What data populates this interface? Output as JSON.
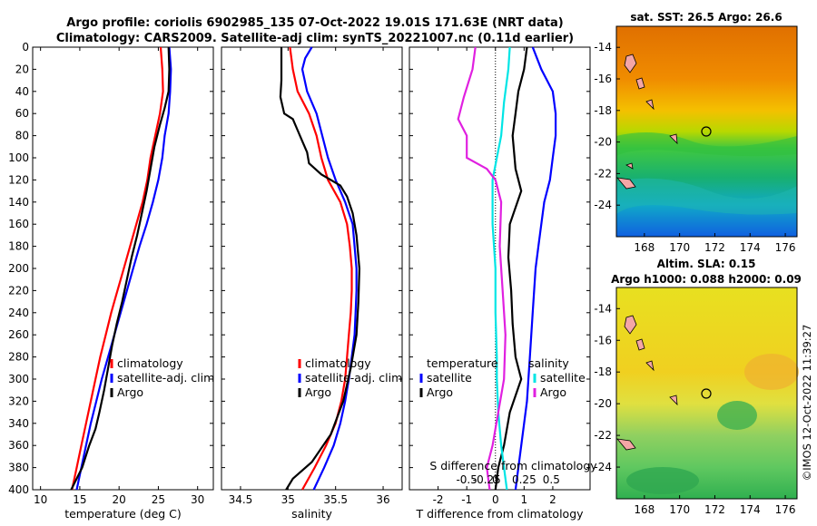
{
  "titles": {
    "line1": "Argo profile: coriolis 6902985_135 07-Oct-2022 19.01S 171.63E (NRT data)",
    "line2": "Climatology: CARS2009. Satellite-adj clim: synTS_20221007.nc (0.11d earlier)"
  },
  "colors": {
    "clim": "#ff0000",
    "sat": "#0000ff",
    "argo": "#000000",
    "sal_sat": "#00e5e5",
    "sal_argo": "#e020e0"
  },
  "chart_data": [
    {
      "type": "line",
      "id": "temperature",
      "xlabel": "temperature (deg C)",
      "xlim": [
        9,
        32
      ],
      "ylim": [
        400,
        0
      ],
      "xticks": [
        10,
        15,
        20,
        25,
        30
      ],
      "yticks": [
        0,
        20,
        40,
        60,
        80,
        100,
        120,
        140,
        160,
        180,
        200,
        220,
        240,
        260,
        280,
        300,
        320,
        340,
        360,
        380,
        400
      ],
      "legend": [
        "climatology",
        "satellite-adj. clim",
        "Argo"
      ],
      "series": [
        {
          "name": "climatology",
          "color": "#ff0000",
          "points": [
            [
              25.3,
              0
            ],
            [
              25.5,
              20
            ],
            [
              25.6,
              40
            ],
            [
              25.2,
              60
            ],
            [
              24.6,
              80
            ],
            [
              24,
              100
            ],
            [
              23.6,
              120
            ],
            [
              23,
              140
            ],
            [
              22.2,
              160
            ],
            [
              21.4,
              180
            ],
            [
              20.6,
              200
            ],
            [
              19.8,
              220
            ],
            [
              19,
              240
            ],
            [
              18.3,
              260
            ],
            [
              17.6,
              280
            ],
            [
              17,
              300
            ],
            [
              16.4,
              320
            ],
            [
              15.8,
              340
            ],
            [
              15.2,
              360
            ],
            [
              14.6,
              380
            ],
            [
              14,
              400
            ]
          ]
        },
        {
          "name": "satellite-adj. clim",
          "color": "#0000ff",
          "points": [
            [
              26.4,
              0
            ],
            [
              26.6,
              20
            ],
            [
              26.5,
              40
            ],
            [
              26.3,
              60
            ],
            [
              25.8,
              80
            ],
            [
              25.5,
              100
            ],
            [
              25,
              120
            ],
            [
              24.3,
              140
            ],
            [
              23.5,
              160
            ],
            [
              22.6,
              180
            ],
            [
              21.8,
              200
            ],
            [
              21,
              220
            ],
            [
              20.2,
              240
            ],
            [
              19.4,
              260
            ],
            [
              18.6,
              280
            ],
            [
              17.8,
              300
            ],
            [
              17.1,
              320
            ],
            [
              16.4,
              340
            ],
            [
              15.8,
              360
            ],
            [
              15.2,
              380
            ],
            [
              14.6,
              400
            ]
          ]
        },
        {
          "name": "Argo",
          "color": "#000000",
          "points": [
            [
              26.3,
              0
            ],
            [
              26.4,
              20
            ],
            [
              26.3,
              40
            ],
            [
              25.8,
              55
            ],
            [
              25.2,
              70
            ],
            [
              24.5,
              90
            ],
            [
              24,
              110
            ],
            [
              23.5,
              130
            ],
            [
              22.9,
              150
            ],
            [
              22.3,
              170
            ],
            [
              21.6,
              190
            ],
            [
              21,
              210
            ],
            [
              20.4,
              230
            ],
            [
              19.7,
              250
            ],
            [
              19.1,
              270
            ],
            [
              18.6,
              290
            ],
            [
              18.1,
              310
            ],
            [
              17.5,
              330
            ],
            [
              17,
              345
            ],
            [
              16.2,
              360
            ],
            [
              15.3,
              380
            ],
            [
              13.9,
              400
            ]
          ]
        }
      ]
    },
    {
      "type": "line",
      "id": "salinity",
      "xlabel": "salinity",
      "xlim": [
        34.3,
        36.2
      ],
      "ylim": [
        400,
        0
      ],
      "xticks": [
        34.5,
        35,
        35.5,
        36
      ],
      "legend": [
        "climatology",
        "satellite-adj. clim",
        "Argo"
      ],
      "series": [
        {
          "name": "climatology",
          "color": "#ff0000",
          "points": [
            [
              35.02,
              0
            ],
            [
              35.05,
              20
            ],
            [
              35.1,
              40
            ],
            [
              35.22,
              60
            ],
            [
              35.3,
              80
            ],
            [
              35.35,
              100
            ],
            [
              35.42,
              120
            ],
            [
              35.55,
              140
            ],
            [
              35.62,
              160
            ],
            [
              35.65,
              180
            ],
            [
              35.67,
              200
            ],
            [
              35.67,
              220
            ],
            [
              35.66,
              240
            ],
            [
              35.64,
              260
            ],
            [
              35.62,
              280
            ],
            [
              35.6,
              300
            ],
            [
              35.56,
              320
            ],
            [
              35.5,
              340
            ],
            [
              35.4,
              360
            ],
            [
              35.28,
              380
            ],
            [
              35.15,
              400
            ]
          ]
        },
        {
          "name": "satellite-adj. clim",
          "color": "#0000ff",
          "points": [
            [
              35.25,
              0
            ],
            [
              35.18,
              10
            ],
            [
              35.15,
              20
            ],
            [
              35.2,
              40
            ],
            [
              35.3,
              60
            ],
            [
              35.36,
              80
            ],
            [
              35.42,
              100
            ],
            [
              35.5,
              120
            ],
            [
              35.6,
              140
            ],
            [
              35.68,
              160
            ],
            [
              35.7,
              180
            ],
            [
              35.72,
              200
            ],
            [
              35.72,
              220
            ],
            [
              35.71,
              240
            ],
            [
              35.7,
              260
            ],
            [
              35.67,
              280
            ],
            [
              35.64,
              300
            ],
            [
              35.6,
              320
            ],
            [
              35.55,
              340
            ],
            [
              35.48,
              360
            ],
            [
              35.38,
              380
            ],
            [
              35.27,
              400
            ]
          ]
        },
        {
          "name": "Argo",
          "color": "#000000",
          "points": [
            [
              34.93,
              0
            ],
            [
              34.93,
              30
            ],
            [
              34.92,
              45
            ],
            [
              34.96,
              60
            ],
            [
              35.05,
              65
            ],
            [
              35.1,
              75
            ],
            [
              35.15,
              85
            ],
            [
              35.2,
              95
            ],
            [
              35.22,
              105
            ],
            [
              35.35,
              115
            ],
            [
              35.55,
              125
            ],
            [
              35.62,
              135
            ],
            [
              35.68,
              150
            ],
            [
              35.72,
              170
            ],
            [
              35.75,
              200
            ],
            [
              35.74,
              230
            ],
            [
              35.72,
              260
            ],
            [
              35.66,
              290
            ],
            [
              35.58,
              320
            ],
            [
              35.45,
              350
            ],
            [
              35.25,
              375
            ],
            [
              35.05,
              390
            ],
            [
              34.98,
              400
            ]
          ]
        }
      ]
    },
    {
      "type": "line",
      "id": "difference",
      "xlabel": "T difference from climatology",
      "xlabel2": "S difference from climatology",
      "xlim": [
        -3,
        3.3
      ],
      "ylim": [
        400,
        0
      ],
      "xticks": [
        -2,
        -1,
        0,
        1,
        2
      ],
      "xticks2_labels": [
        "-0.5",
        "-0.25",
        "0",
        "0.25",
        "0.5"
      ],
      "legend_t_title": "temperature",
      "legend_s_title": "salinity",
      "legend_t": [
        "satellite",
        "Argo"
      ],
      "legend_s": [
        "satellite",
        "Argo"
      ],
      "series": [
        {
          "name": "T satellite",
          "color": "#0000ff",
          "points": [
            [
              1.3,
              0
            ],
            [
              1.6,
              20
            ],
            [
              2,
              40
            ],
            [
              2.1,
              60
            ],
            [
              2.1,
              80
            ],
            [
              2,
              100
            ],
            [
              1.9,
              120
            ],
            [
              1.7,
              140
            ],
            [
              1.6,
              160
            ],
            [
              1.5,
              180
            ],
            [
              1.4,
              200
            ],
            [
              1.3,
              240
            ],
            [
              1.2,
              280
            ],
            [
              1.1,
              320
            ],
            [
              0.9,
              360
            ],
            [
              0.7,
              400
            ]
          ]
        },
        {
          "name": "T Argo",
          "color": "#000000",
          "points": [
            [
              1.1,
              0
            ],
            [
              1.0,
              20
            ],
            [
              0.8,
              40
            ],
            [
              0.7,
              60
            ],
            [
              0.6,
              80
            ],
            [
              0.7,
              110
            ],
            [
              0.9,
              130
            ],
            [
              0.5,
              160
            ],
            [
              0.45,
              190
            ],
            [
              0.55,
              220
            ],
            [
              0.6,
              250
            ],
            [
              0.7,
              280
            ],
            [
              0.9,
              300
            ],
            [
              0.5,
              330
            ],
            [
              0.3,
              360
            ],
            [
              0.1,
              380
            ],
            [
              0,
              400
            ]
          ]
        },
        {
          "name": "S satellite",
          "color": "#00e5e5",
          "points": [
            [
              0.5,
              0
            ],
            [
              0.45,
              20
            ],
            [
              0.3,
              50
            ],
            [
              0.2,
              80
            ],
            [
              0.05,
              100
            ],
            [
              -0.1,
              120
            ],
            [
              -0.1,
              160
            ],
            [
              0,
              200
            ],
            [
              0,
              240
            ],
            [
              0.05,
              280
            ],
            [
              0.05,
              300
            ],
            [
              0.1,
              330
            ],
            [
              0.2,
              360
            ],
            [
              0.3,
              380
            ],
            [
              0.4,
              400
            ]
          ]
        },
        {
          "name": "S Argo",
          "color": "#e020e0",
          "points": [
            [
              -0.7,
              0
            ],
            [
              -0.8,
              20
            ],
            [
              -1.1,
              45
            ],
            [
              -1.3,
              65
            ],
            [
              -1.0,
              80
            ],
            [
              -1.0,
              100
            ],
            [
              -0.3,
              110
            ],
            [
              0.0,
              120
            ],
            [
              0.2,
              140
            ],
            [
              0.15,
              180
            ],
            [
              0.25,
              220
            ],
            [
              0.35,
              260
            ],
            [
              0.3,
              300
            ],
            [
              0.1,
              330
            ],
            [
              -0.1,
              360
            ],
            [
              -0.3,
              380
            ],
            [
              -0.2,
              400
            ]
          ]
        }
      ]
    }
  ],
  "maps": [
    {
      "id": "sst-map",
      "title_line1": "sat. SST: 26.5 Argo: 26.6",
      "xticks": [
        "168",
        "170",
        "172",
        "174",
        "176"
      ],
      "yticks": [
        "-14",
        "-16",
        "-18",
        "-20",
        "-22",
        "-24"
      ]
    },
    {
      "id": "sla-map",
      "title_line1": "Altim. SLA: 0.15",
      "title_line2": "Argo h1000: 0.088 h2000: 0.09",
      "xticks": [
        "168",
        "170",
        "172",
        "174",
        "176"
      ],
      "yticks": [
        "-14",
        "-16",
        "-18",
        "-20",
        "-22",
        "-24"
      ]
    }
  ],
  "credit": "©IMOS 12-Oct-2022 11:39:27"
}
